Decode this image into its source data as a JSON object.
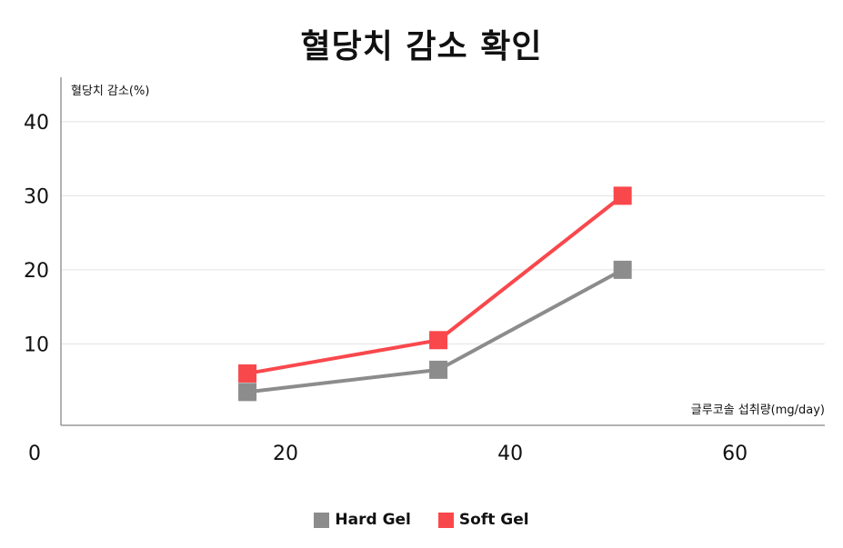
{
  "chart_data": {
    "type": "line",
    "title": "혈당치 감소 확인",
    "ylabel": "혈당치 감소(%)",
    "xlabel": "글루코솔 섭취량(mg/day)",
    "xlim": [
      0,
      68
    ],
    "ylim": [
      -1,
      46
    ],
    "x_ticks": [
      0,
      20,
      40,
      60
    ],
    "y_ticks": [
      10,
      20,
      30,
      40
    ],
    "grid": true,
    "legend_position": "bottom",
    "series": [
      {
        "name": "Hard Gel",
        "color": "#8c8c8c",
        "x": [
          16.6,
          33.6,
          50
        ],
        "y": [
          3.5,
          6.5,
          20
        ]
      },
      {
        "name": "Soft Gel",
        "color": "#f9484c",
        "x": [
          16.6,
          33.6,
          50
        ],
        "y": [
          6,
          10.5,
          30
        ]
      }
    ]
  }
}
